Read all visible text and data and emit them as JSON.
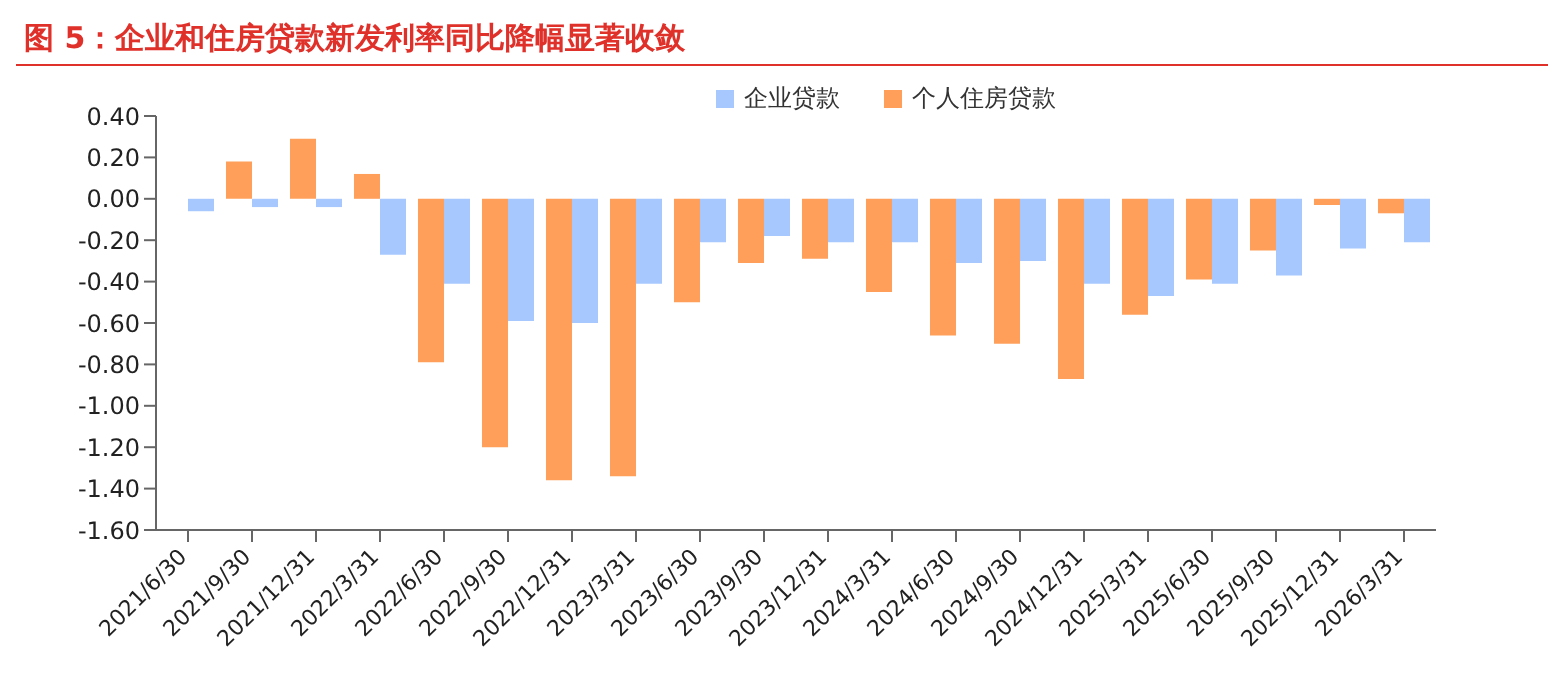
{
  "chart_data": {
    "type": "bar",
    "title": "图 5：企业和住房贷款新发利率同比降幅显著收敛",
    "categories": [
      "2021/6/30",
      "2021/9/30",
      "2021/12/31",
      "2022/3/31",
      "2022/6/30",
      "2022/9/30",
      "2022/12/31",
      "2023/3/31",
      "2023/6/30",
      "2023/9/30",
      "2023/12/31",
      "2024/3/31",
      "2024/6/30",
      "2024/9/30",
      "2024/12/31",
      "2025/3/31",
      "2025/6/30",
      "2025/9/30",
      "2025/12/31",
      "2026/3/31"
    ],
    "series": [
      {
        "name": "企业贷款",
        "color": "#a6c8ff",
        "values": [
          -0.06,
          -0.04,
          -0.04,
          -0.27,
          -0.41,
          -0.59,
          -0.6,
          -0.41,
          -0.21,
          -0.18,
          -0.21,
          -0.21,
          -0.31,
          -0.3,
          -0.41,
          -0.47,
          -0.41,
          -0.37,
          -0.24,
          -0.21
        ]
      },
      {
        "name": "个人住房贷款",
        "color": "#ff9f5a",
        "values": [
          null,
          0.18,
          0.29,
          0.12,
          -0.79,
          -1.2,
          -1.36,
          -1.34,
          -0.5,
          -0.31,
          -0.29,
          -0.45,
          -0.66,
          -0.7,
          -0.87,
          -0.56,
          -0.39,
          -0.25,
          -0.03,
          -0.07
        ]
      }
    ],
    "ylim": [
      -1.6,
      0.4
    ],
    "yticks": [
      {
        "value": 0.4,
        "label": "0.40"
      },
      {
        "value": 0.2,
        "label": "0.20"
      },
      {
        "value": 0,
        "label": "0.00"
      },
      {
        "value": -0.2,
        "label": "-0.20"
      },
      {
        "value": -0.4,
        "label": "-0.40"
      },
      {
        "value": -0.6,
        "label": "-0.60"
      },
      {
        "value": -0.8,
        "label": "-0.80"
      },
      {
        "value": -1,
        "label": "-1.00"
      },
      {
        "value": -1.2,
        "label": "-1.20"
      },
      {
        "value": -1.4,
        "label": "-1.40"
      },
      {
        "value": -1.6,
        "label": "-1.60"
      }
    ],
    "grid": false,
    "legend": "top"
  }
}
